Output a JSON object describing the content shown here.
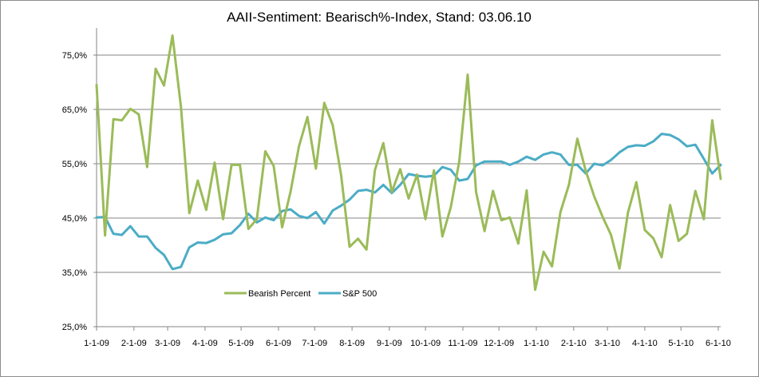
{
  "chart_data": {
    "type": "line",
    "title": "AAII-Sentiment:  Bearisch%-Index,  Stand: 03.06.10",
    "xlabel": "",
    "ylabel": "",
    "ylim": [
      25,
      80
    ],
    "yticks": [
      25,
      35,
      45,
      55,
      65,
      75
    ],
    "ytick_labels": [
      "25,0%",
      "35,0%",
      "45,0%",
      "55,0%",
      "65,0%",
      "75,0%"
    ],
    "grid": true,
    "legend_position": "bottom-left inside plot",
    "x_start_week": 0,
    "x_end_week": 74,
    "x_tick_labels": [
      {
        "label": "1-1-09",
        "week": 0
      },
      {
        "label": "2-1-09",
        "week": 4.43
      },
      {
        "label": "3-1-09",
        "week": 8.43
      },
      {
        "label": "4-1-09",
        "week": 12.86
      },
      {
        "label": "5-1-09",
        "week": 17.14
      },
      {
        "label": "6-1-09",
        "week": 21.57
      },
      {
        "label": "7-1-09",
        "week": 25.86
      },
      {
        "label": "8-1-09",
        "week": 30.29
      },
      {
        "label": "9-1-09",
        "week": 34.71
      },
      {
        "label": "10-1-09",
        "week": 39
      },
      {
        "label": "11-1-09",
        "week": 43.43
      },
      {
        "label": "12-1-09",
        "week": 47.71
      },
      {
        "label": "1-1-10",
        "week": 52.14
      },
      {
        "label": "2-1-10",
        "week": 56.57
      },
      {
        "label": "3-1-10",
        "week": 60.57
      },
      {
        "label": "4-1-10",
        "week": 65
      },
      {
        "label": "5-1-10",
        "week": 69.29
      },
      {
        "label": "6-1-10",
        "week": 73.71
      }
    ],
    "series": [
      {
        "name": "Bearish Percent",
        "color": "#9bbb59",
        "values": [
          69.5,
          41.8,
          63.2,
          63.0,
          65.1,
          64.1,
          54.4,
          72.5,
          69.4,
          78.6,
          65.5,
          45.9,
          51.9,
          46.5,
          55.2,
          44.8,
          54.8,
          54.8,
          43.0,
          44.8,
          57.3,
          54.6,
          43.3,
          49.9,
          58.2,
          63.6,
          54.1,
          66.2,
          62.1,
          52.8,
          39.7,
          41.2,
          39.2,
          53.8,
          58.8,
          49.8,
          54.0,
          48.6,
          53.0,
          44.8,
          53.8,
          41.6,
          47.0,
          55.4,
          71.4,
          49.8,
          42.6,
          50.0,
          44.6,
          45.1,
          40.3,
          50.1,
          31.8,
          38.8,
          36.1,
          46.1,
          51.1,
          59.6,
          53.7,
          49.0,
          45.2,
          41.9,
          35.7,
          46.0,
          51.6,
          42.8,
          41.3,
          37.8,
          47.4,
          40.8,
          42.1,
          50.0,
          44.8,
          63.0,
          52.2
        ]
      },
      {
        "name": "S&P 500",
        "color": "#4bacc6",
        "values": [
          45.1,
          45.2,
          42.1,
          41.9,
          43.5,
          41.6,
          41.6,
          39.5,
          38.2,
          35.6,
          36.0,
          39.6,
          40.5,
          40.4,
          41.0,
          42.0,
          42.2,
          43.7,
          45.8,
          44.2,
          45.1,
          44.6,
          46.3,
          46.6,
          45.4,
          45.0,
          46.1,
          44.0,
          46.4,
          47.3,
          48.4,
          50.0,
          50.2,
          49.7,
          51.1,
          49.6,
          51.1,
          53.1,
          52.8,
          52.6,
          52.8,
          54.4,
          53.9,
          51.9,
          52.2,
          54.7,
          55.4,
          55.4,
          55.4,
          54.8,
          55.4,
          56.3,
          55.7,
          56.7,
          57.1,
          56.7,
          54.8,
          54.8,
          53.2,
          55.0,
          54.7,
          55.7,
          57.1,
          58.1,
          58.4,
          58.3,
          59.1,
          60.5,
          60.3,
          59.5,
          58.2,
          58.5,
          55.9,
          53.2,
          54.8
        ]
      }
    ]
  }
}
